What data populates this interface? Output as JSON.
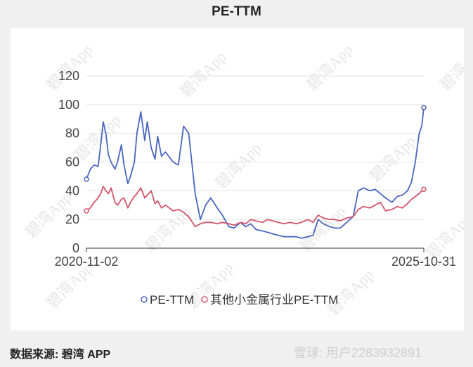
{
  "title": "PE-TTM",
  "footer": {
    "source": "数据来源: 碧湾 APP",
    "brand": "雪球: 用户2283932891"
  },
  "watermark": "碧湾App",
  "colors": {
    "pe": "#4a66c0",
    "industry": "#d3546a"
  },
  "chart_data": {
    "type": "line",
    "title": "PE-TTM",
    "x_start": "2020-11-02",
    "x_end": "2025-10-31",
    "x_tick_labels": [
      "2020-11-02",
      "2025-10-31"
    ],
    "ylim": [
      0,
      120
    ],
    "y_ticks": [
      0,
      20,
      40,
      60,
      80,
      100,
      120
    ],
    "legend_position": "bottom",
    "grid": true,
    "series": [
      {
        "name": "PE-TTM",
        "color": "#4a66c0",
        "x": [
          "2020-11-02",
          "2020-11-23",
          "2020-12-14",
          "2021-01-04",
          "2021-01-18",
          "2021-02-01",
          "2021-02-15",
          "2021-03-01",
          "2021-03-15",
          "2021-04-05",
          "2021-04-19",
          "2021-05-10",
          "2021-05-24",
          "2021-06-14",
          "2021-06-28",
          "2021-07-19",
          "2021-08-02",
          "2021-08-23",
          "2021-09-13",
          "2021-09-27",
          "2021-10-18",
          "2021-11-08",
          "2021-11-22",
          "2021-12-13",
          "2022-01-03",
          "2022-02-14",
          "2022-03-14",
          "2022-04-11",
          "2022-05-09",
          "2022-06-13",
          "2022-07-11",
          "2022-08-08",
          "2022-09-05",
          "2022-10-10",
          "2022-11-07",
          "2022-12-12",
          "2023-01-09",
          "2023-02-13",
          "2023-03-13",
          "2023-04-10",
          "2023-05-08",
          "2023-06-12",
          "2023-07-10",
          "2023-08-07",
          "2023-09-04",
          "2023-10-09",
          "2023-11-06",
          "2023-12-11",
          "2024-01-08",
          "2024-02-12",
          "2024-03-11",
          "2024-04-08",
          "2024-05-06",
          "2024-06-10",
          "2024-07-08",
          "2024-08-05",
          "2024-09-09",
          "2024-10-14",
          "2024-11-11",
          "2024-12-09",
          "2025-01-13",
          "2025-02-10",
          "2025-03-10",
          "2025-04-07",
          "2025-05-12",
          "2025-06-09",
          "2025-07-07",
          "2025-08-04",
          "2025-08-25",
          "2025-09-15",
          "2025-10-06",
          "2025-10-20",
          "2025-10-31"
        ],
        "values": [
          48,
          55,
          58,
          57,
          72,
          88,
          80,
          65,
          60,
          55,
          60,
          72,
          58,
          45,
          50,
          60,
          80,
          95,
          75,
          88,
          70,
          62,
          78,
          64,
          67,
          60,
          58,
          85,
          80,
          38,
          20,
          30,
          35,
          28,
          23,
          15,
          14,
          18,
          15,
          17,
          13,
          12,
          11,
          10,
          9,
          8,
          8,
          8,
          7,
          8,
          9,
          20,
          17,
          15,
          14,
          14,
          18,
          22,
          40,
          42,
          40,
          41,
          38,
          35,
          32,
          36,
          37,
          40,
          46,
          60,
          80,
          85,
          98
        ]
      },
      {
        "name": "其他小金属行业PE-TTM",
        "color": "#d3546a",
        "x": [
          "2020-11-02",
          "2020-11-23",
          "2020-12-14",
          "2021-01-04",
          "2021-01-18",
          "2021-02-01",
          "2021-02-15",
          "2021-03-01",
          "2021-03-15",
          "2021-04-05",
          "2021-04-19",
          "2021-05-10",
          "2021-05-24",
          "2021-06-14",
          "2021-06-28",
          "2021-07-19",
          "2021-08-02",
          "2021-08-23",
          "2021-09-13",
          "2021-09-27",
          "2021-10-18",
          "2021-11-08",
          "2021-11-22",
          "2021-12-13",
          "2022-01-03",
          "2022-02-14",
          "2022-03-14",
          "2022-04-11",
          "2022-05-09",
          "2022-06-13",
          "2022-07-11",
          "2022-08-08",
          "2022-09-05",
          "2022-10-10",
          "2022-11-07",
          "2022-12-12",
          "2023-01-09",
          "2023-02-13",
          "2023-03-13",
          "2023-04-10",
          "2023-05-08",
          "2023-06-12",
          "2023-07-10",
          "2023-08-07",
          "2023-09-04",
          "2023-10-09",
          "2023-11-06",
          "2023-12-11",
          "2024-01-08",
          "2024-02-12",
          "2024-03-11",
          "2024-04-08",
          "2024-05-06",
          "2024-06-10",
          "2024-07-08",
          "2024-08-05",
          "2024-09-09",
          "2024-10-14",
          "2024-11-11",
          "2024-12-09",
          "2025-01-13",
          "2025-02-10",
          "2025-03-10",
          "2025-04-07",
          "2025-05-12",
          "2025-06-09",
          "2025-07-07",
          "2025-08-04",
          "2025-08-25",
          "2025-09-15",
          "2025-10-06",
          "2025-10-20",
          "2025-10-31"
        ],
        "values": [
          26,
          28,
          32,
          35,
          38,
          43,
          40,
          38,
          42,
          32,
          30,
          34,
          35,
          28,
          32,
          36,
          38,
          42,
          35,
          37,
          40,
          31,
          33,
          28,
          30,
          26,
          27,
          25,
          22,
          15,
          17,
          18,
          18,
          17,
          18,
          17,
          16,
          18,
          17,
          20,
          19,
          18,
          20,
          19,
          18,
          17,
          18,
          17,
          18,
          20,
          18,
          23,
          21,
          20,
          20,
          19,
          21,
          22,
          27,
          29,
          28,
          30,
          32,
          26,
          27,
          29,
          28,
          31,
          34,
          36,
          38,
          40,
          41
        ]
      }
    ]
  }
}
